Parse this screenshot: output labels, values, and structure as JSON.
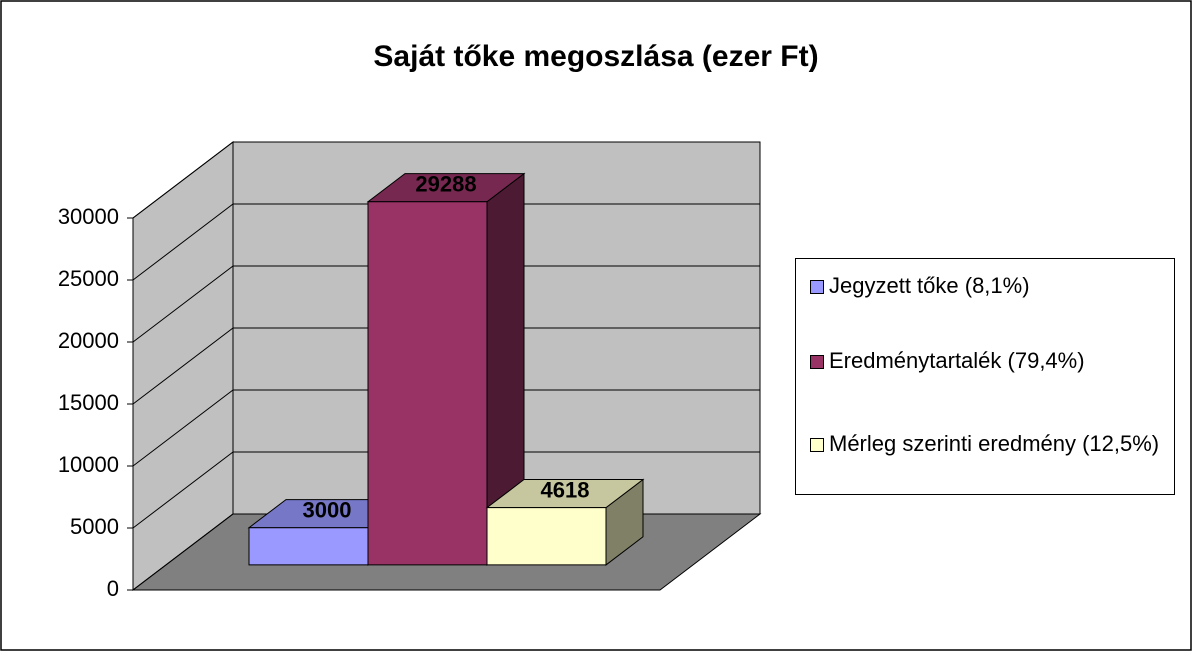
{
  "chart_data": {
    "type": "bar3d",
    "title": "Saját tőke megoszlása (ezer Ft)",
    "categories": [
      null
    ],
    "series": [
      {
        "name": "Jegyzett tőke (8,1%)",
        "color": "#9999ff",
        "values": [
          3000
        ]
      },
      {
        "name": "Eredménytartalék (79,4%)",
        "color": "#993366",
        "values": [
          29288
        ]
      },
      {
        "name": "Mérleg szerinti eredmény (12,5%)",
        "color": "#ffffcc",
        "values": [
          4618
        ]
      }
    ],
    "ylim": [
      0,
      30000
    ],
    "yticks": [
      0,
      5000,
      10000,
      15000,
      20000,
      25000,
      30000
    ],
    "grid": true,
    "legend": "right"
  }
}
